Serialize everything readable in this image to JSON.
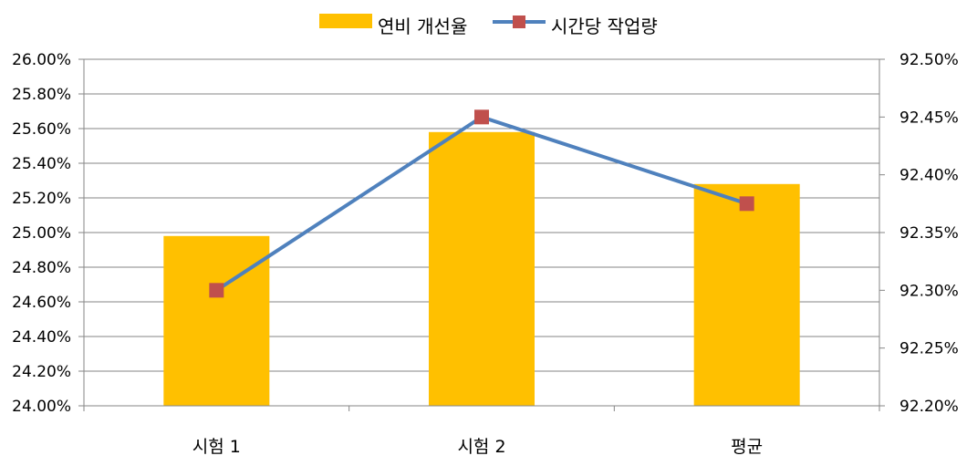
{
  "chart_data": {
    "type": "bar",
    "title": "",
    "categories": [
      "시험 1",
      "시험 2",
      "평균"
    ],
    "series": [
      {
        "name": "연비 개선율",
        "type": "bar",
        "axis": "left",
        "color": "#FFC000",
        "values": [
          24.98,
          25.58,
          25.28
        ]
      },
      {
        "name": "시간당 작업량",
        "type": "line",
        "axis": "right",
        "color": "#4F81BD",
        "marker_color": "#C0504D",
        "values": [
          92.3,
          92.45,
          92.375
        ]
      }
    ],
    "y_left": {
      "min": 24.0,
      "max": 26.0,
      "ticks": [
        "24.00%",
        "24.20%",
        "24.40%",
        "24.60%",
        "24.80%",
        "25.00%",
        "25.20%",
        "25.40%",
        "25.60%",
        "25.80%",
        "26.00%"
      ]
    },
    "y_right": {
      "min": 92.2,
      "max": 92.5,
      "ticks": [
        "92.20%",
        "92.25%",
        "92.30%",
        "92.35%",
        "92.40%",
        "92.45%",
        "92.50%"
      ]
    },
    "grid": true,
    "legend_position": "top"
  }
}
